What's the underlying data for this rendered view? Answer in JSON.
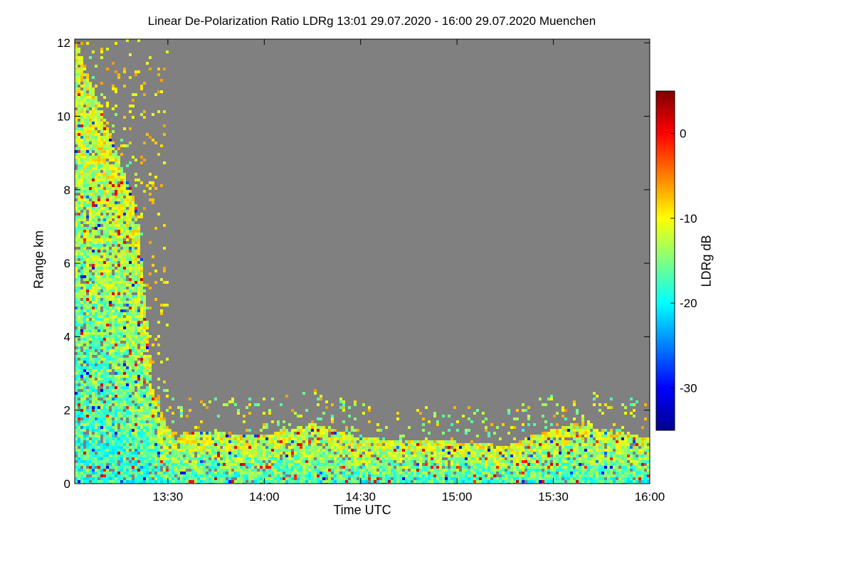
{
  "chart_data": {
    "type": "heatmap",
    "title": "Linear De-Polarization Ratio LDRg   13:01 29.07.2020 - 16:00 29.07.2020 Muenchen",
    "xlabel": "Time UTC",
    "ylabel": "Range km",
    "colorbar_label": "LDRg dB",
    "x_range": [
      "13:01",
      "16:00"
    ],
    "x_ticks": [
      "13:30",
      "14:00",
      "14:30",
      "15:00",
      "15:30",
      "16:00"
    ],
    "y_range": [
      0,
      12.1
    ],
    "y_ticks": [
      0,
      2,
      4,
      6,
      8,
      10,
      12
    ],
    "colorbar_range": [
      -35,
      5
    ],
    "colorbar_ticks": [
      0,
      -10,
      -20,
      -30
    ],
    "colormap": "jet",
    "background_color": "#808080",
    "cloud_top_profile": [
      {
        "time": "13:01",
        "top_km": 12.0
      },
      {
        "time": "13:20",
        "top_km": 7.5
      },
      {
        "time": "13:25",
        "top_km": 2.5
      },
      {
        "time": "13:30",
        "top_km": 1.4
      },
      {
        "time": "14:00",
        "top_km": 1.3
      },
      {
        "time": "14:15",
        "top_km": 1.6
      },
      {
        "time": "14:30",
        "top_km": 1.2
      },
      {
        "time": "15:00",
        "top_km": 1.1
      },
      {
        "time": "15:15",
        "top_km": 1.0
      },
      {
        "time": "15:35",
        "top_km": 1.6
      },
      {
        "time": "16:00",
        "top_km": 1.2
      }
    ]
  }
}
